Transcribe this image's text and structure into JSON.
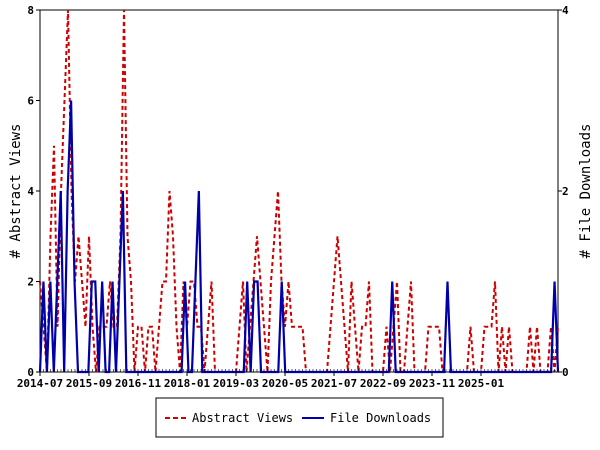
{
  "chart_data": {
    "type": "line",
    "title": "",
    "x_ticks": [
      "2014-07",
      "2015-09",
      "2016-11",
      "2018-01",
      "2019-03",
      "2020-05",
      "2021-07",
      "2022-09",
      "2023-11",
      "2025-01"
    ],
    "y_left": {
      "label": "# Abstract Views",
      "min": 0,
      "max": 8,
      "ticks": [
        0,
        2,
        4,
        6,
        8
      ]
    },
    "y_right": {
      "label": "# File Downloads",
      "min": 0,
      "max": 4,
      "ticks": [
        0,
        2,
        4
      ]
    },
    "legend": {
      "placement": "bottom-center"
    },
    "series": [
      {
        "name": "Abstract Views",
        "axis": "left",
        "color": "#cc0000",
        "style": "dashed",
        "values": [
          2,
          1,
          0,
          3,
          5,
          1,
          4,
          6,
          8,
          4,
          2,
          3,
          2,
          1,
          3,
          1,
          0,
          1,
          1,
          1,
          2,
          1,
          1,
          3,
          8,
          3,
          2,
          0,
          1,
          1,
          0,
          1,
          1,
          0,
          1,
          2,
          2,
          4,
          3,
          1,
          0,
          2,
          1,
          2,
          2,
          1,
          1,
          0,
          1,
          2,
          0,
          0,
          0,
          0,
          0,
          0,
          0,
          1,
          2,
          0,
          1,
          2,
          3,
          2,
          1,
          0,
          2,
          3,
          4,
          2,
          1,
          2,
          1,
          1,
          1,
          1,
          0,
          0,
          0,
          0,
          0,
          0,
          0,
          1,
          2,
          3,
          2,
          1,
          0,
          2,
          1,
          0,
          1,
          1,
          2,
          0,
          0,
          0,
          0,
          1,
          0,
          1,
          2,
          0,
          0,
          1,
          2,
          0,
          0,
          0,
          0,
          1,
          1,
          1,
          1,
          0,
          0,
          0,
          0,
          0,
          0,
          0,
          0,
          1,
          0,
          0,
          0,
          1,
          1,
          1,
          2,
          0,
          1,
          0,
          1,
          0,
          0,
          0,
          0,
          0,
          1,
          0,
          1,
          0,
          0,
          0,
          1,
          0,
          1
        ]
      },
      {
        "name": "File Downloads",
        "axis": "right",
        "color": "#0000aa",
        "style": "solid",
        "values": [
          0,
          1,
          0,
          1,
          0,
          1,
          2,
          0,
          2,
          3,
          1,
          0,
          0,
          0,
          0,
          1,
          1,
          0,
          1,
          0,
          0,
          1,
          0,
          1,
          2,
          0,
          0,
          0,
          0,
          0,
          0,
          0,
          0,
          0,
          0,
          0,
          0,
          0,
          0,
          0,
          0,
          0,
          1,
          0,
          0,
          1,
          2,
          0,
          0,
          0,
          0,
          0,
          0,
          0,
          0,
          0,
          0,
          0,
          0,
          0,
          1,
          0,
          1,
          1,
          0,
          0,
          0,
          0,
          0,
          0,
          1,
          0,
          0,
          0,
          0,
          0,
          0,
          0,
          0,
          0,
          0,
          0,
          0,
          0,
          0,
          0,
          0,
          0,
          0,
          0,
          0,
          0,
          0,
          0,
          0,
          0,
          0,
          0,
          0,
          0,
          0,
          0,
          1,
          0,
          0,
          0,
          0,
          0,
          0,
          0,
          0,
          0,
          0,
          0,
          0,
          0,
          0,
          0,
          1,
          0,
          0,
          0,
          0,
          0,
          0,
          0,
          0,
          0,
          0,
          0,
          0,
          0,
          0,
          0,
          0,
          0,
          0,
          0,
          0,
          0,
          0,
          0,
          0,
          0,
          0,
          0,
          0,
          0,
          0,
          1,
          0
        ]
      }
    ]
  }
}
